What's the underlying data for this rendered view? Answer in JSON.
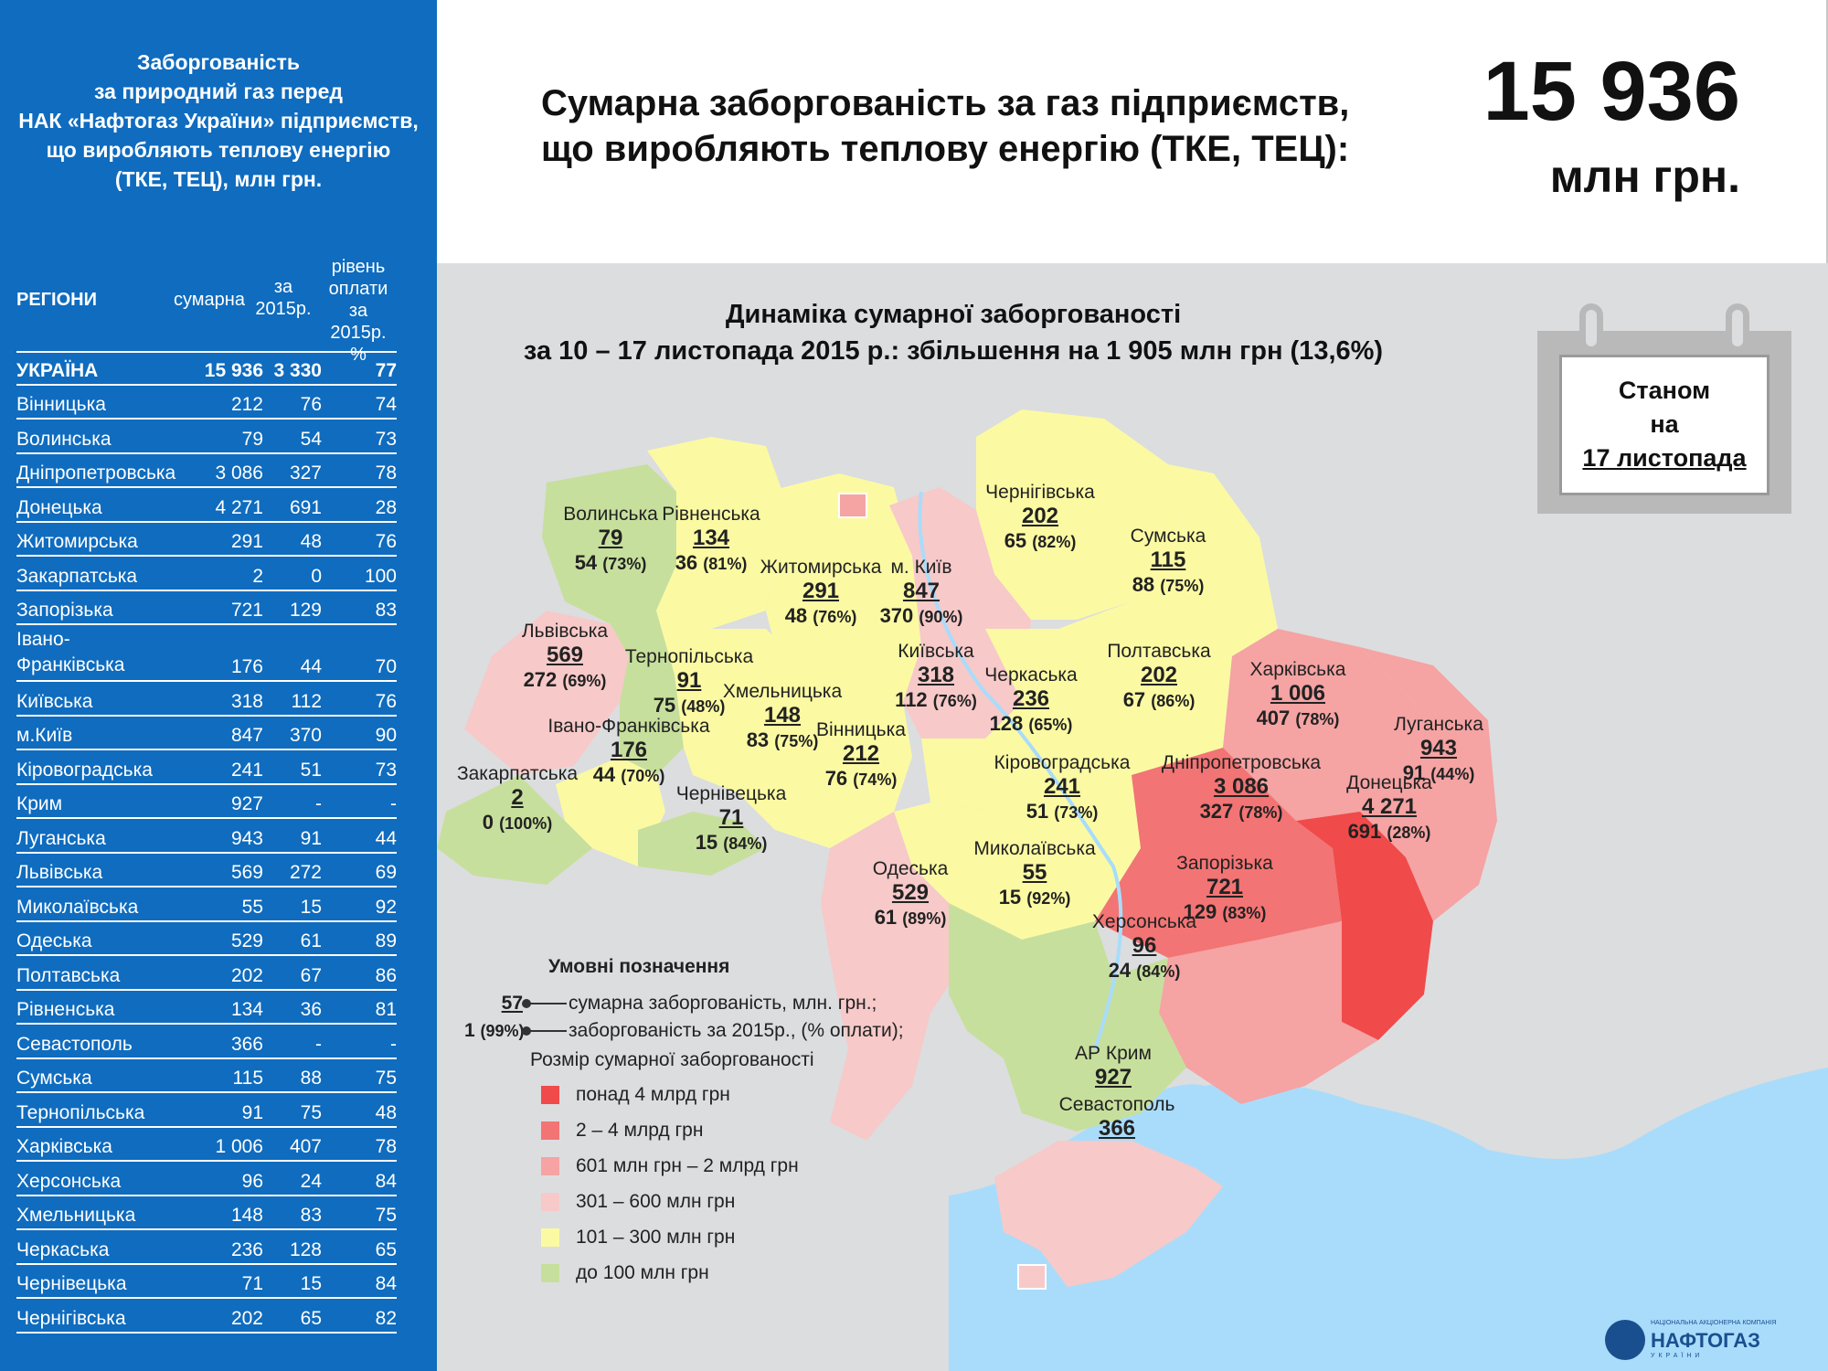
{
  "left_panel": {
    "title_lines": [
      "Заборгованість",
      "за природний газ перед",
      "НАК «Нафтогаз України» підприємств,",
      "що виробляють теплову енергію",
      "(ТКЕ, ТЕЦ), млн грн."
    ],
    "headers": {
      "region": "РЕГІОНИ",
      "sum": "сумарна",
      "y2015": [
        "за",
        "2015р."
      ],
      "rate": [
        "рівень",
        "оплати",
        "за 2015р.",
        "%"
      ]
    },
    "total": {
      "name": "УКРАЇНА",
      "sum": "15 936",
      "y2015": "3 330",
      "rate": "77"
    },
    "rows": [
      {
        "name": "Вінницька",
        "sum": "212",
        "y2015": "76",
        "rate": "74"
      },
      {
        "name": "Волинська",
        "sum": "79",
        "y2015": "54",
        "rate": "73"
      },
      {
        "name": "Дніпропетровська",
        "sum": "3 086",
        "y2015": "327",
        "rate": "78"
      },
      {
        "name": "Донецька",
        "sum": "4 271",
        "y2015": "691",
        "rate": "28"
      },
      {
        "name": "Житомирська",
        "sum": "291",
        "y2015": "48",
        "rate": "76"
      },
      {
        "name": "Закарпатська",
        "sum": "2",
        "y2015": "0",
        "rate": "100"
      },
      {
        "name": "Запорізька",
        "sum": "721",
        "y2015": "129",
        "rate": "83"
      },
      {
        "name": "Івано-Франківська",
        "sum": "176",
        "y2015": "44",
        "rate": "70"
      },
      {
        "name": "Київська",
        "sum": "318",
        "y2015": "112",
        "rate": "76"
      },
      {
        "name": "м.Київ",
        "sum": "847",
        "y2015": "370",
        "rate": "90"
      },
      {
        "name": "Кіровоградська",
        "sum": "241",
        "y2015": "51",
        "rate": "73"
      },
      {
        "name": "Крим",
        "sum": "927",
        "y2015": "-",
        "rate": "-"
      },
      {
        "name": "Луганська",
        "sum": "943",
        "y2015": "91",
        "rate": "44"
      },
      {
        "name": "Львівська",
        "sum": "569",
        "y2015": "272",
        "rate": "69"
      },
      {
        "name": "Миколаївська",
        "sum": "55",
        "y2015": "15",
        "rate": "92"
      },
      {
        "name": "Одеська",
        "sum": "529",
        "y2015": "61",
        "rate": "89"
      },
      {
        "name": "Полтавська",
        "sum": "202",
        "y2015": "67",
        "rate": "86"
      },
      {
        "name": "Рівненська",
        "sum": "134",
        "y2015": "36",
        "rate": "81"
      },
      {
        "name": "Севастополь",
        "sum": "366",
        "y2015": "-",
        "rate": "-"
      },
      {
        "name": "Сумська",
        "sum": "115",
        "y2015": "88",
        "rate": "75"
      },
      {
        "name": "Тернопільська",
        "sum": "91",
        "y2015": "75",
        "rate": "48"
      },
      {
        "name": "Харківська",
        "sum": "1 006",
        "y2015": "407",
        "rate": "78"
      },
      {
        "name": "Херсонська",
        "sum": "96",
        "y2015": "24",
        "rate": "84"
      },
      {
        "name": "Хмельницька",
        "sum": "148",
        "y2015": "83",
        "rate": "75"
      },
      {
        "name": "Черкаська",
        "sum": "236",
        "y2015": "128",
        "rate": "65"
      },
      {
        "name": "Чернівецька",
        "sum": "71",
        "y2015": "15",
        "rate": "84"
      },
      {
        "name": "Чернігівська",
        "sum": "202",
        "y2015": "65",
        "rate": "82"
      }
    ]
  },
  "header": {
    "title_lines": [
      "Сумарна заборгованість за газ підприємств,",
      "що виробляють теплову енергію (ТКЕ, ТЕЦ):"
    ],
    "total_value": "15 936",
    "total_unit": "млн грн."
  },
  "map": {
    "dynamics_lines": [
      "Динаміка сумарної заборгованості",
      "за 10 – 17 листопада 2015 р.: збільшення на 1 905 млн грн (13,6%)"
    ],
    "date_box": {
      "line1": "Станом",
      "line2": "на",
      "line3": "17 листопада"
    },
    "regions": [
      {
        "key": "volyn",
        "name": "Волинська",
        "sum": "79",
        "y2015": "54",
        "pct": "(73%)"
      },
      {
        "key": "rivne",
        "name": "Рівненська",
        "sum": "134",
        "y2015": "36",
        "pct": "(81%)"
      },
      {
        "key": "zhytomyr",
        "name": "Житомирська",
        "sum": "291",
        "y2015": "48",
        "pct": "(76%)"
      },
      {
        "key": "kyivcity",
        "name": "м. Київ",
        "sum": "847",
        "y2015": "370",
        "pct": "(90%)"
      },
      {
        "key": "chernihiv",
        "name": "Чернігівська",
        "sum": "202",
        "y2015": "65",
        "pct": "(82%)"
      },
      {
        "key": "sumy",
        "name": "Сумська",
        "sum": "115",
        "y2015": "88",
        "pct": "(75%)"
      },
      {
        "key": "lviv",
        "name": "Львівська",
        "sum": "569",
        "y2015": "272",
        "pct": "(69%)"
      },
      {
        "key": "ternopil",
        "name": "Тернопільська",
        "sum": "91",
        "y2015": "75",
        "pct": "(48%)"
      },
      {
        "key": "khmelnytskyi",
        "name": "Хмельницька",
        "sum": "148",
        "y2015": "83",
        "pct": "(75%)"
      },
      {
        "key": "kyiv",
        "name": "Київська",
        "sum": "318",
        "y2015": "112",
        "pct": "(76%)"
      },
      {
        "key": "cherkasy",
        "name": "Черкаська",
        "sum": "236",
        "y2015": "128",
        "pct": "(65%)"
      },
      {
        "key": "poltava",
        "name": "Полтавська",
        "sum": "202",
        "y2015": "67",
        "pct": "(86%)"
      },
      {
        "key": "kharkiv",
        "name": "Харківська",
        "sum": "1 006",
        "y2015": "407",
        "pct": "(78%)"
      },
      {
        "key": "luhansk",
        "name": "Луганська",
        "sum": "943",
        "y2015": "91",
        "pct": "(44%)"
      },
      {
        "key": "ivanofrankivsk",
        "name": "Івано-Франківська",
        "sum": "176",
        "y2015": "44",
        "pct": "(70%)"
      },
      {
        "key": "zakarpattia",
        "name": "Закарпатська",
        "sum": "2",
        "y2015": "0",
        "pct": "(100%)"
      },
      {
        "key": "chernivtsi",
        "name": "Чернівецька",
        "sum": "71",
        "y2015": "15",
        "pct": "(84%)"
      },
      {
        "key": "vinnytsia",
        "name": "Вінницька",
        "sum": "212",
        "y2015": "76",
        "pct": "(74%)"
      },
      {
        "key": "kirovohrad",
        "name": "Кіровоградська",
        "sum": "241",
        "y2015": "51",
        "pct": "(73%)"
      },
      {
        "key": "dnipro",
        "name": "Дніпропетровська",
        "sum": "3 086",
        "y2015": "327",
        "pct": "(78%)"
      },
      {
        "key": "donetsk",
        "name": "Донецька",
        "sum": "4 271",
        "y2015": "691",
        "pct": "(28%)"
      },
      {
        "key": "odesa",
        "name": "Одеська",
        "sum": "529",
        "y2015": "61",
        "pct": "(89%)"
      },
      {
        "key": "mykolaiv",
        "name": "Миколаївська",
        "sum": "55",
        "y2015": "15",
        "pct": "(92%)"
      },
      {
        "key": "zaporizhzhia",
        "name": "Запорізька",
        "sum": "721",
        "y2015": "129",
        "pct": "(83%)"
      },
      {
        "key": "kherson",
        "name": "Херсонська",
        "sum": "96",
        "y2015": "24",
        "pct": "(84%)"
      },
      {
        "key": "crimea",
        "name": "АР Крим",
        "sum": "927"
      },
      {
        "key": "sevastopol",
        "name": "Севастополь",
        "sum": "366"
      }
    ],
    "legend": {
      "title": "Умовні позначення",
      "sample_sum": "57",
      "sample_sum_label": "сумарна заборгованість, млн. грн.;",
      "sample_y2015": "1",
      "sample_pct": "(99%)",
      "sample_y2015_label": "заборгованість за 2015р., (% оплати);",
      "size_title": "Розмір сумарної заборгованості",
      "items": [
        {
          "label": "понад 4 млрд грн",
          "color": "#f04a4a"
        },
        {
          "label": "2 – 4 млрд грн",
          "color": "#f37474"
        },
        {
          "label": "601 млн грн – 2 млрд грн",
          "color": "#f5a3a3"
        },
        {
          "label": "301 – 600 млн грн",
          "color": "#f7c9c9"
        },
        {
          "label": "101 – 300 млн грн",
          "color": "#fbfaa3"
        },
        {
          "label": "до 100 млн грн",
          "color": "#c7df9c"
        }
      ]
    },
    "logo": {
      "small": "НАЦІОНАЛЬНА АКЦІОНЕРНА КОМПАНІЯ",
      "name": "НАФТОГАЗ",
      "country": "УКРАЇНИ"
    }
  }
}
